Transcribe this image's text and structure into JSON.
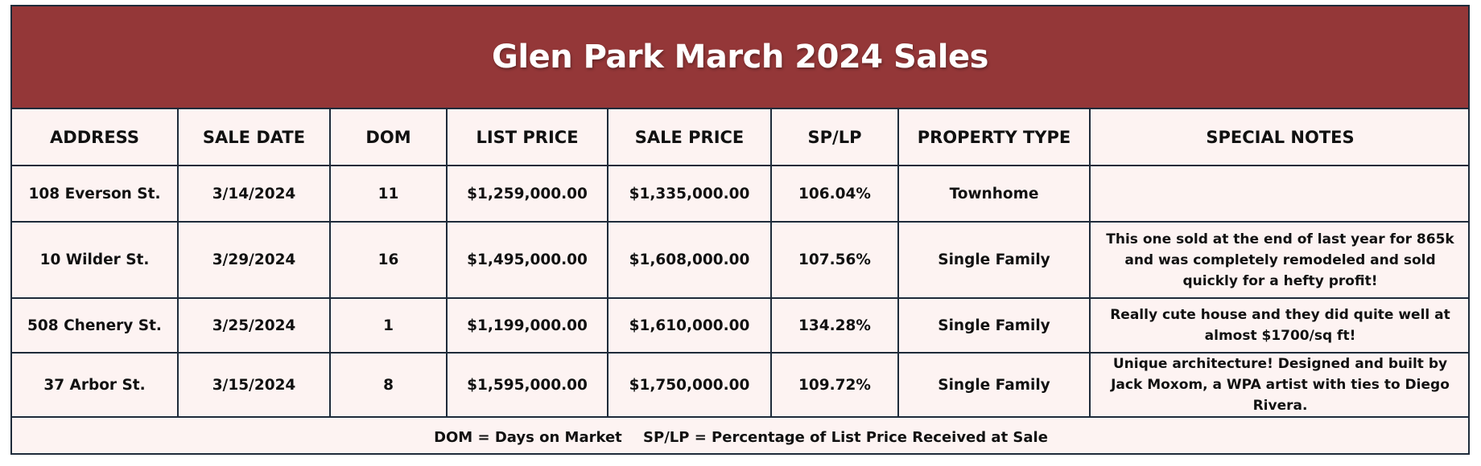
{
  "title": "Glen Park March 2024 Sales",
  "headers": [
    "ADDRESS",
    "SALE DATE",
    "DOM",
    "LIST PRICE",
    "SALE PRICE",
    "SP/LP",
    "PROPERTY TYPE",
    "SPECIAL NOTES"
  ],
  "rows": [
    [
      "108 Everson St.",
      "3/14/2024",
      "11",
      "$1,259,000.00",
      "$1,335,000.00",
      "106.04%",
      "Townhome",
      ""
    ],
    [
      "10 Wilder St.",
      "3/29/2024",
      "16",
      "$1,495,000.00",
      "$1,608,000.00",
      "107.56%",
      "Single Family",
      "This one sold at the end of last year for 865k and was completely remodeled and sold quickly for a hefty profit!"
    ],
    [
      "508 Chenery St.",
      "3/25/2024",
      "1",
      "$1,199,000.00",
      "$1,610,000.00",
      "134.28%",
      "Single Family",
      "Really cute house and they did quite well at almost $1700/sq ft!"
    ],
    [
      "37 Arbor St.",
      "3/15/2024",
      "8",
      "$1,595,000.00",
      "$1,750,000.00",
      "109.72%",
      "Single Family",
      "Unique architecture! Designed and built by Jack Moxom, a WPA artist with ties to Diego Rivera."
    ]
  ],
  "footer": {
    "dom_legend": "DOM = Days on Market",
    "splp_legend": "SP/LP = Percentage of List Price Received at Sale"
  },
  "colors": {
    "title_bg": "#943738",
    "table_bg": "#fdf3f2",
    "border": "#1e2b3a"
  }
}
